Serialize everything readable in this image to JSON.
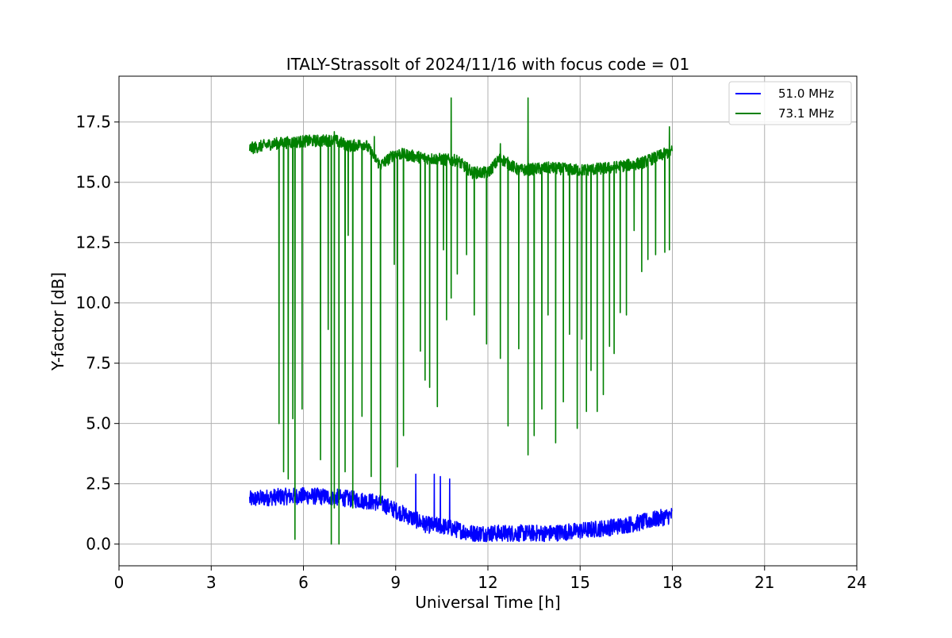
{
  "chart_data": {
    "type": "line",
    "title": "ITALY-Strassolt of 2024/11/16 with focus code = 01",
    "xlabel": "Universal Time [h]",
    "ylabel": "Y-factor [dB]",
    "xlim": [
      0,
      24
    ],
    "ylim": [
      -0.9,
      19.4
    ],
    "x_ticks": [
      0,
      3,
      6,
      9,
      12,
      15,
      18,
      21,
      24
    ],
    "y_ticks": [
      0.0,
      2.5,
      5.0,
      7.5,
      10.0,
      12.5,
      15.0,
      17.5
    ],
    "x_tick_labels": [
      "0",
      "3",
      "6",
      "9",
      "12",
      "15",
      "18",
      "21",
      "24"
    ],
    "y_tick_labels": [
      "0.0",
      "2.5",
      "5.0",
      "7.5",
      "10.0",
      "12.5",
      "15.0",
      "17.5"
    ],
    "grid": true,
    "legend_position": "top-right",
    "series": [
      {
        "name": "51.0 MHz",
        "color": "#0000ff",
        "baseline": [
          [
            4.25,
            1.85
          ],
          [
            5.0,
            1.95
          ],
          [
            6.0,
            2.0
          ],
          [
            7.0,
            1.95
          ],
          [
            8.0,
            1.8
          ],
          [
            8.5,
            1.7
          ],
          [
            9.0,
            1.4
          ],
          [
            9.5,
            1.1
          ],
          [
            10.0,
            0.8
          ],
          [
            10.5,
            0.75
          ],
          [
            11.0,
            0.6
          ],
          [
            11.5,
            0.45
          ],
          [
            12.0,
            0.45
          ],
          [
            13.0,
            0.45
          ],
          [
            14.0,
            0.45
          ],
          [
            15.0,
            0.55
          ],
          [
            16.0,
            0.7
          ],
          [
            17.0,
            0.9
          ],
          [
            18.0,
            1.2
          ]
        ],
        "noise_amplitude": 0.35,
        "spikes": [
          [
            9.65,
            2.9
          ],
          [
            10.25,
            2.9
          ],
          [
            10.45,
            2.8
          ],
          [
            10.75,
            2.7
          ]
        ]
      },
      {
        "name": "73.1 MHz",
        "color": "#008000",
        "baseline": [
          [
            4.25,
            16.4
          ],
          [
            5.0,
            16.6
          ],
          [
            6.0,
            16.7
          ],
          [
            7.0,
            16.75
          ],
          [
            7.5,
            16.5
          ],
          [
            8.0,
            16.6
          ],
          [
            8.5,
            15.7
          ],
          [
            9.0,
            16.2
          ],
          [
            10.0,
            16.0
          ],
          [
            11.0,
            15.9
          ],
          [
            11.5,
            15.4
          ],
          [
            12.0,
            15.4
          ],
          [
            12.4,
            16.0
          ],
          [
            13.0,
            15.5
          ],
          [
            14.0,
            15.6
          ],
          [
            15.0,
            15.5
          ],
          [
            16.0,
            15.6
          ],
          [
            17.0,
            15.8
          ],
          [
            18.0,
            16.3
          ]
        ],
        "noise_amplitude": 0.25,
        "dips": [
          [
            5.2,
            5.0
          ],
          [
            5.35,
            3.0
          ],
          [
            5.5,
            2.7
          ],
          [
            5.65,
            5.2
          ],
          [
            5.72,
            0.2
          ],
          [
            5.95,
            5.6
          ],
          [
            6.55,
            3.5
          ],
          [
            6.8,
            8.9
          ],
          [
            6.9,
            0.0
          ],
          [
            7.0,
            1.5
          ],
          [
            7.15,
            0.0
          ],
          [
            7.35,
            3.0
          ],
          [
            7.45,
            12.8
          ],
          [
            7.6,
            1.5
          ],
          [
            7.9,
            5.3
          ],
          [
            8.2,
            2.8
          ],
          [
            8.5,
            1.7
          ],
          [
            8.95,
            11.6
          ],
          [
            9.05,
            3.2
          ],
          [
            9.25,
            4.5
          ],
          [
            9.8,
            8.0
          ],
          [
            9.95,
            6.8
          ],
          [
            10.1,
            6.5
          ],
          [
            10.35,
            5.7
          ],
          [
            10.55,
            12.2
          ],
          [
            10.65,
            9.3
          ],
          [
            10.8,
            10.2
          ],
          [
            11.0,
            11.2
          ],
          [
            11.3,
            12.0
          ],
          [
            11.55,
            9.5
          ],
          [
            11.95,
            8.3
          ],
          [
            12.4,
            7.7
          ],
          [
            12.65,
            4.9
          ],
          [
            13.0,
            8.1
          ],
          [
            13.3,
            3.7
          ],
          [
            13.5,
            4.5
          ],
          [
            13.75,
            5.6
          ],
          [
            13.95,
            9.5
          ],
          [
            14.2,
            4.2
          ],
          [
            14.45,
            5.9
          ],
          [
            14.65,
            8.7
          ],
          [
            14.9,
            4.8
          ],
          [
            15.05,
            8.5
          ],
          [
            15.2,
            5.5
          ],
          [
            15.35,
            7.2
          ],
          [
            15.55,
            5.5
          ],
          [
            15.75,
            6.2
          ],
          [
            15.95,
            8.2
          ],
          [
            16.1,
            7.9
          ],
          [
            16.3,
            9.6
          ],
          [
            16.5,
            9.5
          ],
          [
            16.75,
            13.0
          ],
          [
            17.0,
            11.3
          ],
          [
            17.2,
            11.8
          ],
          [
            17.45,
            12.0
          ],
          [
            17.75,
            12.1
          ],
          [
            17.9,
            12.2
          ]
        ],
        "spikes": [
          [
            7.0,
            17.1
          ],
          [
            8.3,
            16.9
          ],
          [
            10.8,
            18.5
          ],
          [
            12.4,
            16.6
          ],
          [
            13.3,
            18.5
          ],
          [
            17.9,
            17.3
          ]
        ]
      }
    ]
  }
}
